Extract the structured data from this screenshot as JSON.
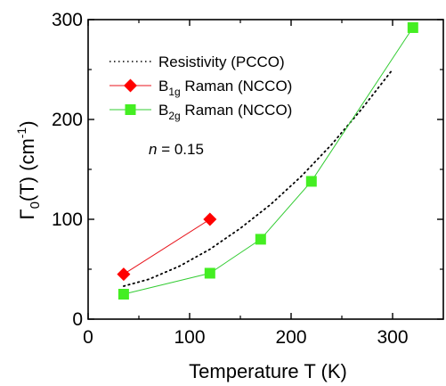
{
  "chart_data": {
    "type": "line",
    "xlabel": "Temperature T (K)",
    "ylabel": {
      "base": "Γ",
      "sub": "0",
      "mid": "(T) (cm",
      "sup": "-1",
      "end": ")"
    },
    "xlim": [
      0,
      350
    ],
    "ylim": [
      0,
      300
    ],
    "xticks": [
      0,
      100,
      200,
      300
    ],
    "yticks": [
      0,
      100,
      200,
      300
    ],
    "grid": false,
    "legend_position": "upper-left",
    "series": [
      {
        "key": "resistivity",
        "legend": {
          "main": "Resistivity  (PCCO)"
        },
        "style": "dotted",
        "marker": "none",
        "color": "#000000",
        "x": [
          35,
          60,
          90,
          120,
          150,
          180,
          210,
          240,
          270,
          300
        ],
        "y": [
          33,
          40,
          53,
          70,
          91,
          115,
          143,
          175,
          211,
          250
        ]
      },
      {
        "key": "b1g",
        "legend": {
          "base": "B",
          "sub": "1g",
          "rest": " Raman (NCCO)"
        },
        "style": "solid",
        "marker": "diamond",
        "color": "#e8141c",
        "marker_color": "#ff0000",
        "x": [
          35,
          120
        ],
        "y": [
          45,
          100
        ]
      },
      {
        "key": "b2g",
        "legend": {
          "base": "B",
          "sub": "2g",
          "rest": " Raman (NCCO)"
        },
        "style": "solid",
        "marker": "square",
        "color": "#33cc33",
        "marker_color": "#44ee22",
        "x": [
          35,
          120,
          170,
          220,
          320
        ],
        "y": [
          25,
          46,
          80,
          138,
          292
        ]
      }
    ],
    "annotation": {
      "italic": "n",
      "rest": " = 0.15"
    }
  }
}
